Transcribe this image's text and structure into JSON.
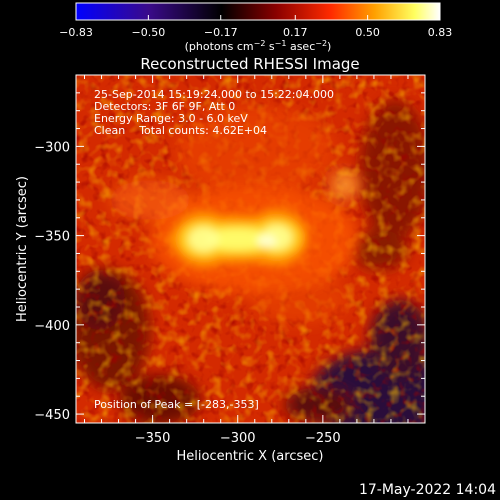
{
  "chart_data": {
    "type": "heatmap",
    "title": "Reconstructed RHESSI Image",
    "xlabel": "Heliocentric X (arcsec)",
    "ylabel": "Heliocentric Y (arcsec)",
    "xlim": [
      -395,
      -190
    ],
    "ylim": [
      -455,
      -260
    ],
    "x_ticks": [
      -350,
      -300,
      -250
    ],
    "x_tick_labels": [
      "−350",
      "−300",
      "−250"
    ],
    "y_ticks": [
      -300,
      -350,
      -400,
      -450
    ],
    "y_tick_labels": [
      "−300",
      "−350",
      "−400",
      "−450"
    ],
    "colorbar": {
      "range": [
        -0.83,
        0.83
      ],
      "ticks": [
        -0.83,
        -0.5,
        -0.17,
        0.17,
        0.5,
        0.83
      ],
      "tick_labels": [
        "−0.83",
        "−0.50",
        "−0.17",
        "0.17",
        "0.50",
        "0.83"
      ],
      "label_pre": "(photons cm",
      "label_sup1": "−2",
      "label_mid1": " s",
      "label_sup2": "−1",
      "label_mid2": " asec",
      "label_sup3": "−2",
      "label_post": ")",
      "colors": [
        "#0000ff",
        "#3a0a8a",
        "#000000",
        "#8a0000",
        "#ff2a00",
        "#ffa000",
        "#ffff60",
        "#ffffff"
      ]
    },
    "peak_position": [
      -283,
      -353
    ],
    "sources": [
      {
        "x": -300,
        "y": -352,
        "sigma_x": 22,
        "sigma_y": 6,
        "amplitude": 0.83
      },
      {
        "x": -320,
        "y": -352,
        "sigma_x": 10,
        "sigma_y": 7,
        "amplitude": 0.6
      },
      {
        "x": -277,
        "y": -351,
        "sigma_x": 10,
        "sigma_y": 7,
        "amplitude": 0.65
      }
    ],
    "background_level": 0.2
  },
  "annotations": {
    "line1": "25-Sep-2014 15:19:24.000 to 15:22:04.000",
    "line2": "Detectors: 3F 6F 9F, Att 0",
    "line3": "Energy Range: 3.0 - 6.0 keV",
    "line4": "Clean    Total counts: 4.62E+04",
    "peak": "Position of Peak = [-283,-353]"
  },
  "footer": {
    "date": "17-May-2022 14:04"
  }
}
